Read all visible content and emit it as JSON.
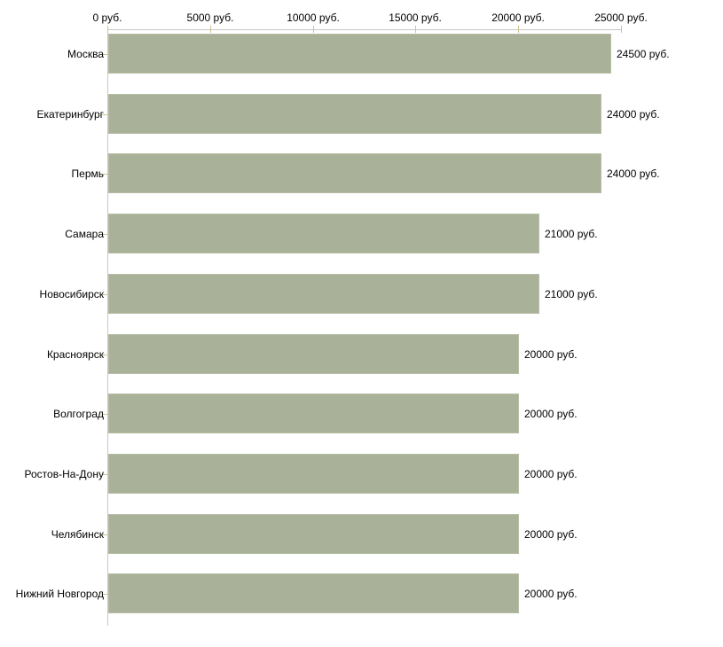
{
  "chart_data": {
    "type": "bar",
    "orientation": "horizontal",
    "title": "",
    "xlabel": "",
    "ylabel": "",
    "unit": "руб.",
    "grid": false,
    "legend": null,
    "xlim": [
      0,
      25000
    ],
    "categories": [
      "Москва",
      "Екатеринбург",
      "Пермь",
      "Самара",
      "Новосибирск",
      "Красноярск",
      "Волгоград",
      "Ростов-На-Дону",
      "Челябинск",
      "Нижний Новгород"
    ],
    "values": [
      24500,
      24000,
      24000,
      21000,
      21000,
      20000,
      20000,
      20000,
      20000,
      20000
    ],
    "value_labels": [
      "24500 руб.",
      "24000 руб.",
      "24000 руб.",
      "21000 руб.",
      "21000 руб.",
      "20000 руб.",
      "20000 руб.",
      "20000 руб.",
      "20000 руб.",
      "20000 руб."
    ],
    "x_ticks": [
      {
        "value": 0,
        "label": "0 руб."
      },
      {
        "value": 5000,
        "label": "5000 руб."
      },
      {
        "value": 10000,
        "label": "10000 руб."
      },
      {
        "value": 15000,
        "label": "15000 руб."
      },
      {
        "value": 20000,
        "label": "20000 руб."
      },
      {
        "value": 25000,
        "label": "25000 руб."
      }
    ]
  },
  "colors": {
    "background": "#ffffff",
    "bar_fill": "#a9b199",
    "bar_border": "#b7bea6",
    "axis_line": "#c8c8c8",
    "tick_mark": "#c9c592",
    "text": "#000000"
  }
}
